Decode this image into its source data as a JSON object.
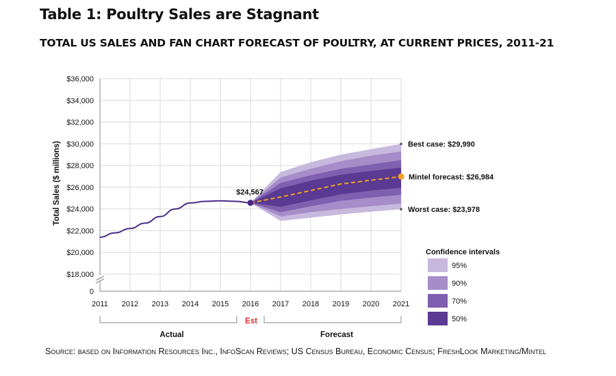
{
  "title": "Table 1: Poultry Sales are Stagnant",
  "subtitle": "TOTAL US SALES AND FAN CHART FORECAST OF POULTRY, AT CURRENT PRICES, 2011-21",
  "source": "Source: based on Information Resources Inc., InfoScan Reviews; US Census Bureau, Economic Census; FreshLook Marketing/Mintel",
  "colors": {
    "actual_line": "#4b2a85",
    "forecast_line": "#f5a020",
    "ci95": "#c7b8dd",
    "ci90": "#a68dc9",
    "ci70": "#7f5fb0",
    "ci50": "#5a3a92",
    "est_label": "#e02a2a"
  },
  "chart_data": {
    "type": "line",
    "title": "TOTAL US SALES AND FAN CHART FORECAST OF POULTRY, AT CURRENT PRICES, 2011-21",
    "ylabel": "Total Sales ($ millions)",
    "xlabel": "",
    "ylim": [
      18000,
      36000
    ],
    "y_axis_break_below": 18000,
    "y_ticks": [
      36000,
      34000,
      32000,
      30000,
      28000,
      26000,
      24000,
      22000,
      20000,
      18000
    ],
    "y_tick_labels": [
      "$36,000",
      "$34,000",
      "$32,000",
      "$30,000",
      "$28,000",
      "$26,000",
      "$24,000",
      "$22,000",
      "$20,000",
      "$18,000",
      "0"
    ],
    "x": [
      2011,
      2012,
      2013,
      2014,
      2015,
      2016,
      2017,
      2018,
      2019,
      2020,
      2021
    ],
    "x_tick_labels": [
      "2011",
      "2012",
      "2013",
      "2014",
      "2015",
      "2016",
      "2017",
      "2018",
      "2019",
      "2020",
      "2021"
    ],
    "grid": true,
    "actual": {
      "x": [
        2011,
        2011.5,
        2012,
        2012.5,
        2013,
        2013.5,
        2014,
        2014.5,
        2015,
        2015.5,
        2016
      ],
      "y": [
        21400,
        21800,
        22200,
        22700,
        23300,
        24000,
        24550,
        24700,
        24750,
        24700,
        24567
      ]
    },
    "forecast": {
      "x": [
        2016,
        2017,
        2018,
        2019,
        2020,
        2021
      ],
      "y": [
        24567,
        25100,
        25700,
        26300,
        26650,
        26984
      ]
    },
    "confidence_intervals": [
      {
        "level": "95%",
        "lower": [
          24567,
          22900,
          23200,
          23500,
          23750,
          23978
        ],
        "upper": [
          24567,
          27400,
          28300,
          29000,
          29500,
          29990
        ]
      },
      {
        "level": "90%",
        "lower": [
          24567,
          23300,
          23700,
          24000,
          24250,
          24500
        ],
        "upper": [
          24567,
          26900,
          27700,
          28400,
          28900,
          29300
        ]
      },
      {
        "level": "70%",
        "lower": [
          24567,
          23700,
          24250,
          24750,
          25050,
          25300
        ],
        "upper": [
          24567,
          26400,
          27100,
          27700,
          28100,
          28500
        ]
      },
      {
        "level": "50%",
        "lower": [
          24567,
          24200,
          24800,
          25350,
          25700,
          25950
        ],
        "upper": [
          24567,
          25900,
          26600,
          27150,
          27500,
          27800
        ]
      }
    ],
    "annotations": {
      "current": "$24,567",
      "best_case": "Best case: $29,990",
      "mintel_forecast": "Mintel forecast: $26,984",
      "worst_case": "Worst case: $23,978"
    },
    "legend": {
      "title": "Confidence intervals",
      "placement": "bottom-right",
      "items": [
        "95%",
        "90%",
        "70%",
        "50%"
      ]
    },
    "periods": {
      "actual": "Actual",
      "est": "Est",
      "forecast": "Forecast"
    }
  }
}
